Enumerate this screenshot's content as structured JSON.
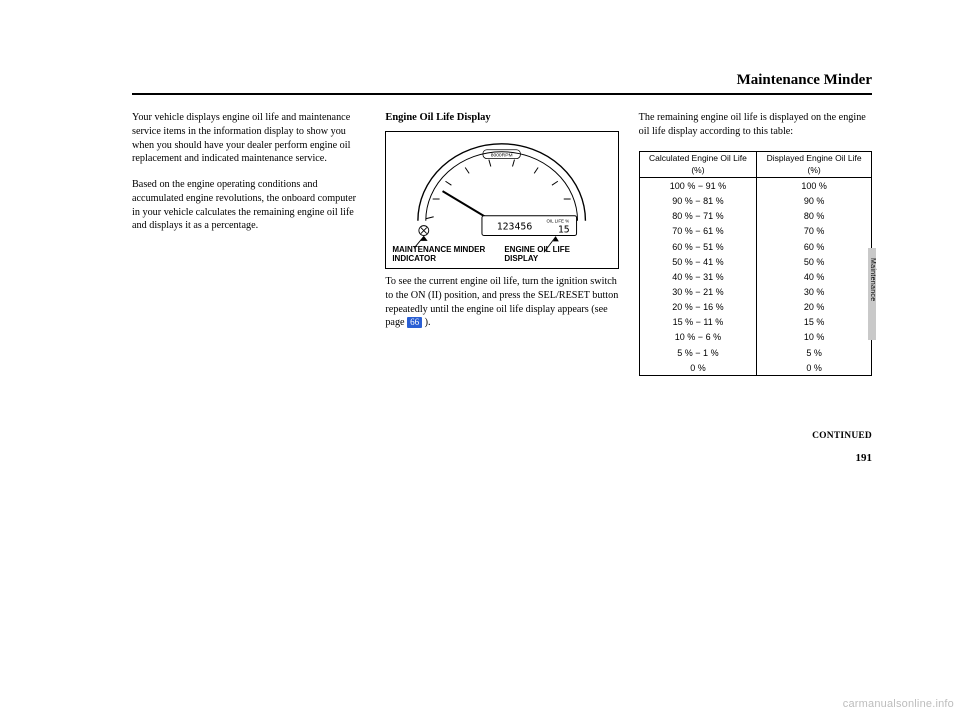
{
  "header": {
    "title": "Maintenance Minder"
  },
  "col1": {
    "p1": "Your vehicle displays engine oil life and maintenance service items in the information display to show you when you should have your dealer perform engine oil replacement and indicated maintenance service.",
    "p2": "Based on the engine operating conditions and accumulated engine revolutions, the onboard computer in your vehicle calculates the remaining engine oil life and displays it as a percentage."
  },
  "col2": {
    "subhead": "Engine Oil Life Display",
    "label_minder": "MAINTENANCE MINDER INDICATOR",
    "label_oil": "ENGINE OIL LIFE DISPLAY",
    "gauge_top": "8000RPM",
    "gauge_odo": "123456",
    "gauge_oil": "OIL LIFE %",
    "gauge_oilnum": "15",
    "caption_a": "To see the current engine oil life, turn the ignition switch to the ON (II) position, and press the SEL/RESET button repeatedly until the engine oil life display appears (see page ",
    "caption_page": "66",
    "caption_b": " )."
  },
  "col3": {
    "intro": "The remaining engine oil life is displayed on the engine oil life display according to this table:",
    "table": {
      "head_l": "Calculated Engine Oil Life (%)",
      "head_r": "Displayed Engine Oil Life (%)",
      "rows": [
        [
          "100 % − 91 %",
          "100 %"
        ],
        [
          "90 % − 81 %",
          "90 %"
        ],
        [
          "80 % − 71 %",
          "80 %"
        ],
        [
          "70 % − 61 %",
          "70 %"
        ],
        [
          "60 % − 51 %",
          "60 %"
        ],
        [
          "50 % − 41 %",
          "50 %"
        ],
        [
          "40 % − 31 %",
          "40 %"
        ],
        [
          "30 % − 21 %",
          "30 %"
        ],
        [
          "20 % − 16 %",
          "20 %"
        ],
        [
          "15 % − 11 %",
          "15 %"
        ],
        [
          "10 % − 6 %",
          "10 %"
        ],
        [
          "5 % − 1 %",
          "5 %"
        ],
        [
          "0 %",
          "0 %"
        ]
      ]
    },
    "continued": "CONTINUED",
    "pagenum": "191"
  },
  "thumbtab": {
    "label": "Maintenance"
  },
  "watermark": "carmanualsonline.info"
}
